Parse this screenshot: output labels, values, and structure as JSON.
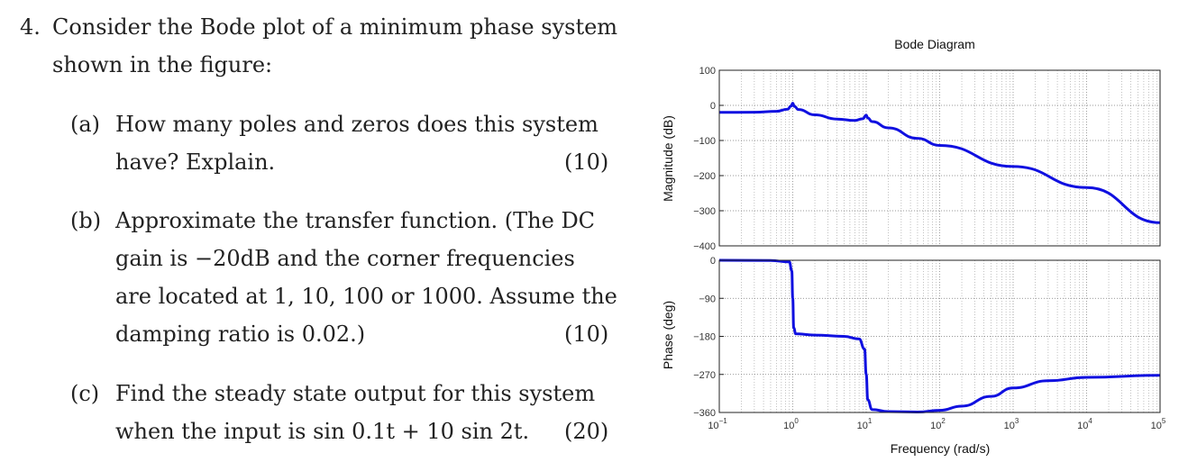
{
  "question": {
    "number": "4.",
    "intro_line1": "Consider the Bode plot of a minimum phase system",
    "intro_line2": "shown in the figure:",
    "parts": [
      {
        "label": "(a)",
        "line1": "How many poles and zeros does this system",
        "line2": "have? Explain.",
        "points": "(10)"
      },
      {
        "label": "(b)",
        "line1": "Approximate the transfer function. (The DC",
        "line2": "gain is −20dB and the corner frequencies",
        "line3": "are located at 1, 10, 100 or 1000. Assume the",
        "line4": "damping ratio is 0.02.)",
        "points": "(10)"
      },
      {
        "label": "(c)",
        "line1": "Find the steady state output for this system",
        "line2": "when the input is sin 0.1t + 10 sin 2t.",
        "points": "(20)"
      }
    ]
  },
  "chart_data": {
    "type": "line",
    "title": "Bode Diagram",
    "xlabel": "Frequency  (rad/s)",
    "x_scale": "log",
    "x_ticks": [
      {
        "base": "10",
        "exp": "−1"
      },
      {
        "base": "10",
        "exp": "0"
      },
      {
        "base": "10",
        "exp": "1"
      },
      {
        "base": "10",
        "exp": "2"
      },
      {
        "base": "10",
        "exp": "3"
      },
      {
        "base": "10",
        "exp": "4"
      },
      {
        "base": "10",
        "exp": "5"
      }
    ],
    "xlim": [
      0.1,
      100000
    ],
    "grid": true,
    "line_color": "#1010e0",
    "magnitude": {
      "ylabel": "Magnitude (dB)",
      "ylim": [
        -400,
        100
      ],
      "yticks": [
        "100",
        "0",
        "−100",
        "−200",
        "−300",
        "−400"
      ],
      "x": [
        0.1,
        0.3,
        0.6,
        0.85,
        0.95,
        1.0,
        1.05,
        1.2,
        2,
        4,
        7,
        9,
        10,
        10.5,
        12,
        20,
        50,
        100,
        1000,
        10000,
        100000
      ],
      "y": [
        -20,
        -19.5,
        -17,
        -11,
        -2,
        6,
        -3,
        -12,
        -27,
        -39,
        -43,
        -38,
        -28,
        -36,
        -46,
        -64,
        -94,
        -114,
        -174,
        -234,
        -334
      ]
    },
    "phase": {
      "ylabel": "Phase (deg)",
      "ylim": [
        -360,
        0
      ],
      "yticks": [
        "0",
        "−90",
        "−180",
        "−270",
        "−360"
      ],
      "x": [
        0.1,
        0.5,
        0.9,
        0.97,
        1.0,
        1.03,
        1.1,
        2,
        5,
        8,
        9.5,
        10,
        10.5,
        12,
        20,
        50,
        100,
        200,
        500,
        1000,
        3000,
        10000,
        100000
      ],
      "y": [
        0,
        -0.5,
        -4,
        -25,
        -90,
        -160,
        -174,
        -177,
        -180,
        -186,
        -210,
        -270,
        -330,
        -353,
        -358,
        -359,
        -355,
        -345,
        -322,
        -302,
        -285,
        -277,
        -272
      ]
    }
  }
}
